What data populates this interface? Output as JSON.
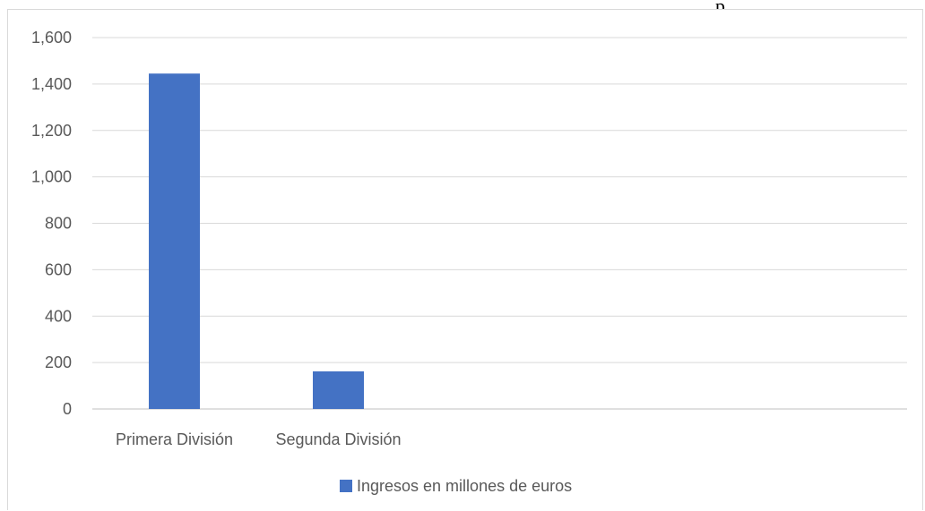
{
  "overflow_text": "p",
  "chart_data": {
    "type": "bar",
    "categories": [
      "Primera División",
      "Segunda División"
    ],
    "series": [
      {
        "name": "Ingresos en millones de euros",
        "values": [
          1445,
          162
        ],
        "color": "#4472c4"
      }
    ],
    "ylim": [
      0,
      1600
    ],
    "yticks": [
      0,
      200,
      400,
      600,
      800,
      1000,
      1200,
      1400,
      1600
    ],
    "ytick_labels": [
      "0",
      "200",
      "400",
      "600",
      "800",
      "1,000",
      "1,200",
      "1,400",
      "1,600"
    ],
    "grid": true,
    "legend": "bottom",
    "title": "",
    "xlabel": "",
    "ylabel": ""
  }
}
